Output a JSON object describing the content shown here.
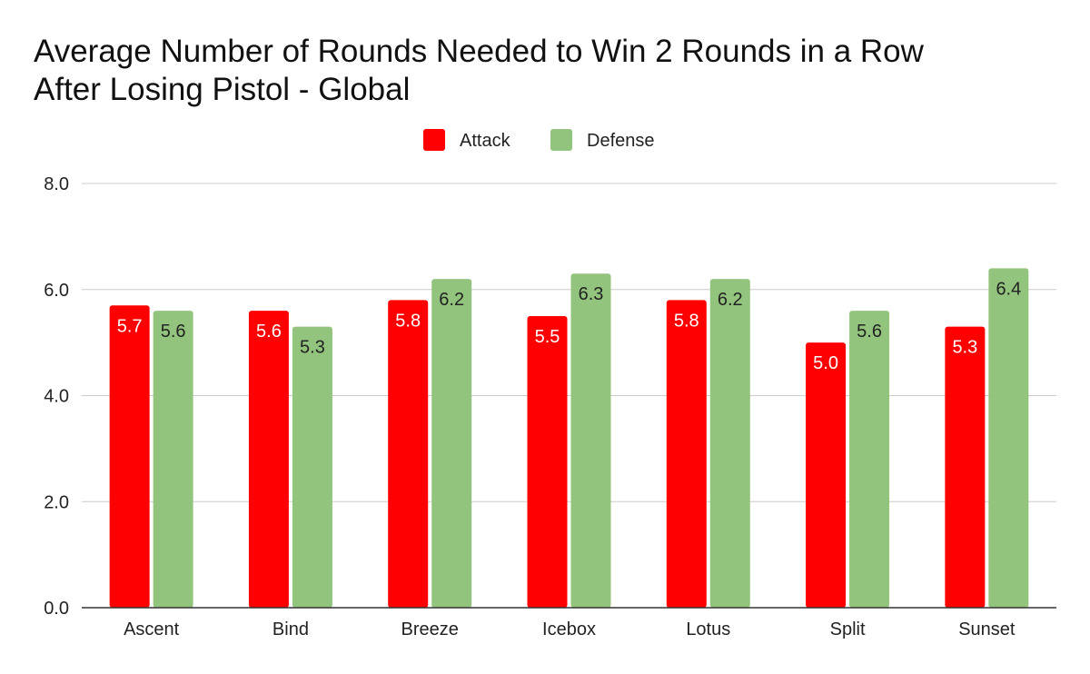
{
  "chart_data": {
    "type": "bar",
    "title_lines": [
      "Average Number of Rounds Needed to Win 2 Rounds in a Row",
      "After Losing Pistol - Global"
    ],
    "categories": [
      "Ascent",
      "Bind",
      "Breeze",
      "Icebox",
      "Lotus",
      "Split",
      "Sunset"
    ],
    "series": [
      {
        "name": "Attack",
        "color": "#ff0000",
        "label_color": "#ffffff",
        "values": [
          5.7,
          5.6,
          5.8,
          5.5,
          5.8,
          5.0,
          5.3
        ],
        "value_labels": [
          "5.7",
          "5.6",
          "5.8",
          "5.5",
          "5.8",
          "5.0",
          "5.3"
        ]
      },
      {
        "name": "Defense",
        "color": "#93c47d",
        "label_color": "#222222",
        "values": [
          5.6,
          5.3,
          6.2,
          6.3,
          6.2,
          5.6,
          6.4
        ],
        "value_labels": [
          "5.6",
          "5.3",
          "6.2",
          "6.3",
          "6.2",
          "5.6",
          "6.4"
        ]
      }
    ],
    "ylim": [
      0,
      8
    ],
    "yticks": [
      0,
      2,
      4,
      6,
      8
    ],
    "ytick_labels": [
      "0.0",
      "2.0",
      "4.0",
      "6.0",
      "8.0"
    ],
    "grid": true,
    "legend_position": "top-center"
  }
}
